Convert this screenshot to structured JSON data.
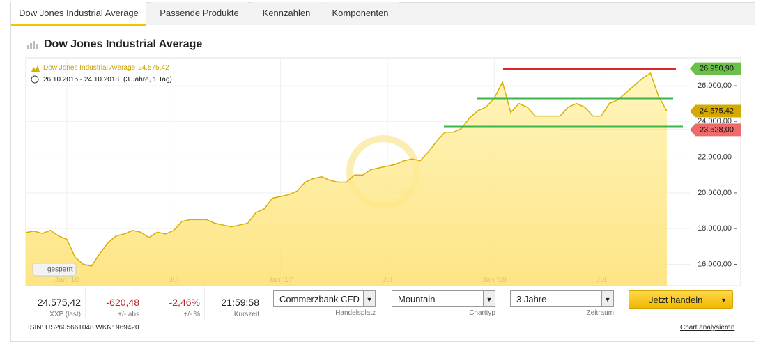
{
  "tabs": [
    "Dow Jones Industrial Average",
    "Passende Produkte",
    "Kennzahlen",
    "Komponenten"
  ],
  "title": "Dow Jones Industrial Average",
  "chart_data": {
    "type": "area",
    "series": [
      {
        "name": "Dow Jones Industrial Average",
        "color": "#d6b000",
        "values": [
          17780,
          17860,
          17730,
          17900,
          17590,
          17400,
          16400,
          16000,
          15900,
          16600,
          17200,
          17600,
          17700,
          17900,
          17800,
          17500,
          17800,
          17700,
          17900,
          18400,
          18500,
          18500,
          18500,
          18300,
          18200,
          18100,
          18200,
          18300,
          18900,
          19100,
          19700,
          19800,
          19900,
          20100,
          20600,
          20800,
          20900,
          20700,
          20600,
          20600,
          21000,
          21000,
          21300,
          21400,
          21500,
          21600,
          21800,
          21900,
          21800,
          22300,
          22900,
          23400,
          23400,
          23600,
          24200,
          24600,
          24800,
          25300,
          26200,
          24500,
          25000,
          24800,
          24300,
          24300,
          24300,
          24300,
          24800,
          25000,
          24800,
          24300,
          24300,
          25000,
          25200,
          25600,
          26000,
          26400,
          26700,
          25400,
          24575.42
        ]
      }
    ],
    "legend_value": {
      "value": 24575.42,
      "label": "24.575,42"
    },
    "date_range": "26.10.2015 - 24.10.2018",
    "period": "(3 Jahre, 1 Tag)",
    "categories": [
      null,
      null,
      null,
      null,
      null,
      "Jan '16",
      null,
      null,
      null,
      null,
      null,
      null,
      null,
      null,
      null,
      null,
      null,
      null,
      "Jul",
      null,
      null,
      null,
      null,
      null,
      null,
      null,
      null,
      null,
      null,
      null,
      null,
      "Jan '17",
      null,
      null,
      null,
      null,
      null,
      null,
      null,
      null,
      null,
      null,
      null,
      null,
      "Jul",
      null,
      null,
      null,
      null,
      null,
      null,
      null,
      null,
      null,
      null,
      null,
      null,
      "Jan '18",
      null,
      null,
      null,
      null,
      null,
      null,
      null,
      null,
      null,
      null,
      null,
      null,
      "Jul",
      null,
      null,
      null,
      null,
      null,
      null,
      null,
      null
    ],
    "ylim": [
      14810,
      27560
    ],
    "yticks": [
      {
        "value": 16000,
        "label": "16.000,00"
      },
      {
        "value": 18000,
        "label": "18.000,00"
      },
      {
        "value": 20000,
        "label": "20.000,00"
      },
      {
        "value": 22000,
        "label": "22.000,00"
      },
      {
        "value": 24000,
        "label": "24.000,00"
      },
      {
        "value": 26000,
        "label": "26.000,00"
      }
    ],
    "grid": true,
    "lines": [
      {
        "value": 26950.9,
        "color": "#e0262a"
      },
      {
        "value": 25300,
        "color": "#3cb54a"
      },
      {
        "value": 23700,
        "color": "#3cb54a"
      }
    ],
    "price_markers": [
      {
        "value": 26950.9,
        "label": "26.950,90",
        "color": "#6cc04a"
      },
      {
        "value": 24575.42,
        "label": "24.575,42",
        "color": "#d6a900"
      },
      {
        "value": 23528,
        "label": "23.528,00",
        "color": "#ef6b6b"
      }
    ],
    "lock_label": "gesperrt"
  },
  "quote": [
    {
      "value": "24.575,42",
      "caption": "XXP (last)",
      "color": "#222"
    },
    {
      "value": "-620,48",
      "caption": "+/- abs",
      "color": "#b5262a"
    },
    {
      "value": "-2,46%",
      "caption": "+/- %",
      "color": "#b5262a"
    },
    {
      "value": "21:59:58",
      "caption": "Kurszeit",
      "color": "#222"
    }
  ],
  "controls": [
    {
      "value": "Commerzbank CFD",
      "caption": "Handelsplatz"
    },
    {
      "value": "Mountain",
      "caption": "Charttyp"
    },
    {
      "value": "3 Jahre",
      "caption": "Zeitraum"
    }
  ],
  "button": "Jetzt handeln",
  "footer": {
    "ids": "ISIN: US2605661048 WKN: 969420",
    "link": "Chart analysieren"
  }
}
